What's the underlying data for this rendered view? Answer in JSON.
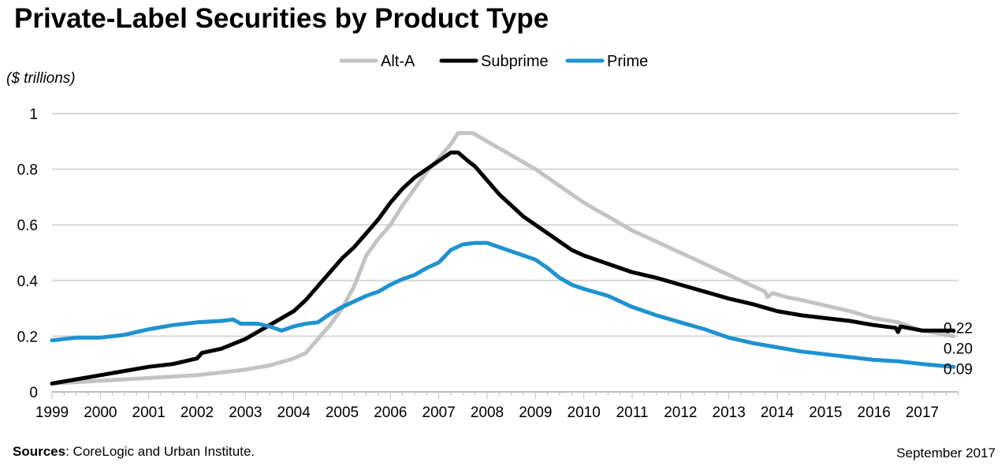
{
  "chart_data": {
    "type": "line",
    "title": "Private-Label Securities by Product Type",
    "unit_label": "($ trillions)",
    "ylim": [
      0,
      1
    ],
    "yticks": [
      "0",
      "0.2",
      "0.4",
      "0.6",
      "0.8",
      "1"
    ],
    "xlim": [
      1999,
      2017.75
    ],
    "xticks": [
      "1999",
      "2000",
      "2001",
      "2002",
      "2003",
      "2004",
      "2005",
      "2006",
      "2007",
      "2008",
      "2009",
      "2010",
      "2011",
      "2012",
      "2013",
      "2014",
      "2015",
      "2016",
      "2017"
    ],
    "legend_position": "top-center",
    "grid": true,
    "series": [
      {
        "name": "Alt-A",
        "color": "#c3c3c3",
        "end_label": "0.20",
        "points": [
          [
            1999,
            0.03
          ],
          [
            2000,
            0.04
          ],
          [
            2001,
            0.05
          ],
          [
            2002,
            0.06
          ],
          [
            2003,
            0.08
          ],
          [
            2003.5,
            0.095
          ],
          [
            2004,
            0.12
          ],
          [
            2004.25,
            0.14
          ],
          [
            2004.5,
            0.19
          ],
          [
            2004.75,
            0.24
          ],
          [
            2005,
            0.3
          ],
          [
            2005.25,
            0.38
          ],
          [
            2005.5,
            0.49
          ],
          [
            2005.75,
            0.55
          ],
          [
            2006,
            0.6
          ],
          [
            2006.25,
            0.67
          ],
          [
            2006.5,
            0.73
          ],
          [
            2006.75,
            0.79
          ],
          [
            2007,
            0.84
          ],
          [
            2007.25,
            0.89
          ],
          [
            2007.4,
            0.93
          ],
          [
            2007.7,
            0.93
          ],
          [
            2008,
            0.9
          ],
          [
            2008.5,
            0.85
          ],
          [
            2009,
            0.8
          ],
          [
            2009.5,
            0.74
          ],
          [
            2010,
            0.68
          ],
          [
            2010.5,
            0.63
          ],
          [
            2011,
            0.58
          ],
          [
            2011.5,
            0.54
          ],
          [
            2012,
            0.5
          ],
          [
            2012.5,
            0.46
          ],
          [
            2013,
            0.42
          ],
          [
            2013.5,
            0.38
          ],
          [
            2013.75,
            0.36
          ],
          [
            2013.8,
            0.34
          ],
          [
            2013.9,
            0.355
          ],
          [
            2014,
            0.35
          ],
          [
            2014.2,
            0.34
          ],
          [
            2014.5,
            0.33
          ],
          [
            2015,
            0.31
          ],
          [
            2015.5,
            0.29
          ],
          [
            2016,
            0.265
          ],
          [
            2016.5,
            0.25
          ],
          [
            2017,
            0.22
          ],
          [
            2017.65,
            0.2
          ]
        ]
      },
      {
        "name": "Subprime",
        "color": "#000000",
        "end_label": "0.22",
        "points": [
          [
            1999,
            0.03
          ],
          [
            1999.5,
            0.045
          ],
          [
            2000,
            0.06
          ],
          [
            2000.5,
            0.075
          ],
          [
            2001,
            0.09
          ],
          [
            2001.5,
            0.1
          ],
          [
            2002,
            0.12
          ],
          [
            2002.1,
            0.14
          ],
          [
            2002.5,
            0.155
          ],
          [
            2003,
            0.19
          ],
          [
            2003.5,
            0.24
          ],
          [
            2004,
            0.29
          ],
          [
            2004.25,
            0.33
          ],
          [
            2004.5,
            0.38
          ],
          [
            2004.75,
            0.43
          ],
          [
            2005,
            0.48
          ],
          [
            2005.25,
            0.52
          ],
          [
            2005.5,
            0.57
          ],
          [
            2005.75,
            0.62
          ],
          [
            2006,
            0.68
          ],
          [
            2006.25,
            0.73
          ],
          [
            2006.5,
            0.77
          ],
          [
            2006.75,
            0.8
          ],
          [
            2007,
            0.83
          ],
          [
            2007.25,
            0.86
          ],
          [
            2007.4,
            0.86
          ],
          [
            2007.6,
            0.83
          ],
          [
            2007.75,
            0.81
          ],
          [
            2008,
            0.76
          ],
          [
            2008.25,
            0.71
          ],
          [
            2008.5,
            0.67
          ],
          [
            2008.75,
            0.63
          ],
          [
            2009,
            0.6
          ],
          [
            2009.25,
            0.57
          ],
          [
            2009.5,
            0.54
          ],
          [
            2009.75,
            0.51
          ],
          [
            2010,
            0.49
          ],
          [
            2010.5,
            0.46
          ],
          [
            2011,
            0.43
          ],
          [
            2011.5,
            0.41
          ],
          [
            2012,
            0.385
          ],
          [
            2012.5,
            0.36
          ],
          [
            2013,
            0.335
          ],
          [
            2013.5,
            0.315
          ],
          [
            2014,
            0.29
          ],
          [
            2014.5,
            0.275
          ],
          [
            2015,
            0.265
          ],
          [
            2015.5,
            0.255
          ],
          [
            2016,
            0.24
          ],
          [
            2016.45,
            0.23
          ],
          [
            2016.5,
            0.215
          ],
          [
            2016.55,
            0.235
          ],
          [
            2017,
            0.22
          ],
          [
            2017.65,
            0.22
          ]
        ]
      },
      {
        "name": "Prime",
        "color": "#1f92d0",
        "end_label": "0.09",
        "points": [
          [
            1999,
            0.185
          ],
          [
            1999.5,
            0.195
          ],
          [
            2000,
            0.195
          ],
          [
            2000.5,
            0.205
          ],
          [
            2001,
            0.225
          ],
          [
            2001.5,
            0.24
          ],
          [
            2002,
            0.25
          ],
          [
            2002.5,
            0.255
          ],
          [
            2002.75,
            0.26
          ],
          [
            2002.9,
            0.245
          ],
          [
            2003,
            0.245
          ],
          [
            2003.25,
            0.245
          ],
          [
            2003.5,
            0.235
          ],
          [
            2003.75,
            0.22
          ],
          [
            2004,
            0.235
          ],
          [
            2004.25,
            0.245
          ],
          [
            2004.5,
            0.25
          ],
          [
            2004.75,
            0.28
          ],
          [
            2005,
            0.305
          ],
          [
            2005.25,
            0.325
          ],
          [
            2005.5,
            0.345
          ],
          [
            2005.75,
            0.36
          ],
          [
            2006,
            0.385
          ],
          [
            2006.25,
            0.405
          ],
          [
            2006.5,
            0.42
          ],
          [
            2006.75,
            0.445
          ],
          [
            2007,
            0.465
          ],
          [
            2007.25,
            0.51
          ],
          [
            2007.5,
            0.53
          ],
          [
            2007.75,
            0.535
          ],
          [
            2008,
            0.535
          ],
          [
            2008.25,
            0.52
          ],
          [
            2008.5,
            0.505
          ],
          [
            2008.75,
            0.49
          ],
          [
            2009,
            0.475
          ],
          [
            2009.25,
            0.445
          ],
          [
            2009.5,
            0.41
          ],
          [
            2009.75,
            0.385
          ],
          [
            2010,
            0.37
          ],
          [
            2010.5,
            0.345
          ],
          [
            2011,
            0.305
          ],
          [
            2011.5,
            0.275
          ],
          [
            2012,
            0.25
          ],
          [
            2012.5,
            0.225
          ],
          [
            2013,
            0.195
          ],
          [
            2013.5,
            0.175
          ],
          [
            2014,
            0.16
          ],
          [
            2014.5,
            0.145
          ],
          [
            2015,
            0.135
          ],
          [
            2015.5,
            0.125
          ],
          [
            2016,
            0.115
          ],
          [
            2016.5,
            0.11
          ],
          [
            2017,
            0.1
          ],
          [
            2017.65,
            0.09
          ]
        ]
      }
    ]
  },
  "footer": {
    "sources_label": "Sources",
    "sources_text": ": CoreLogic and Urban Institute.",
    "date": "September 2017"
  }
}
